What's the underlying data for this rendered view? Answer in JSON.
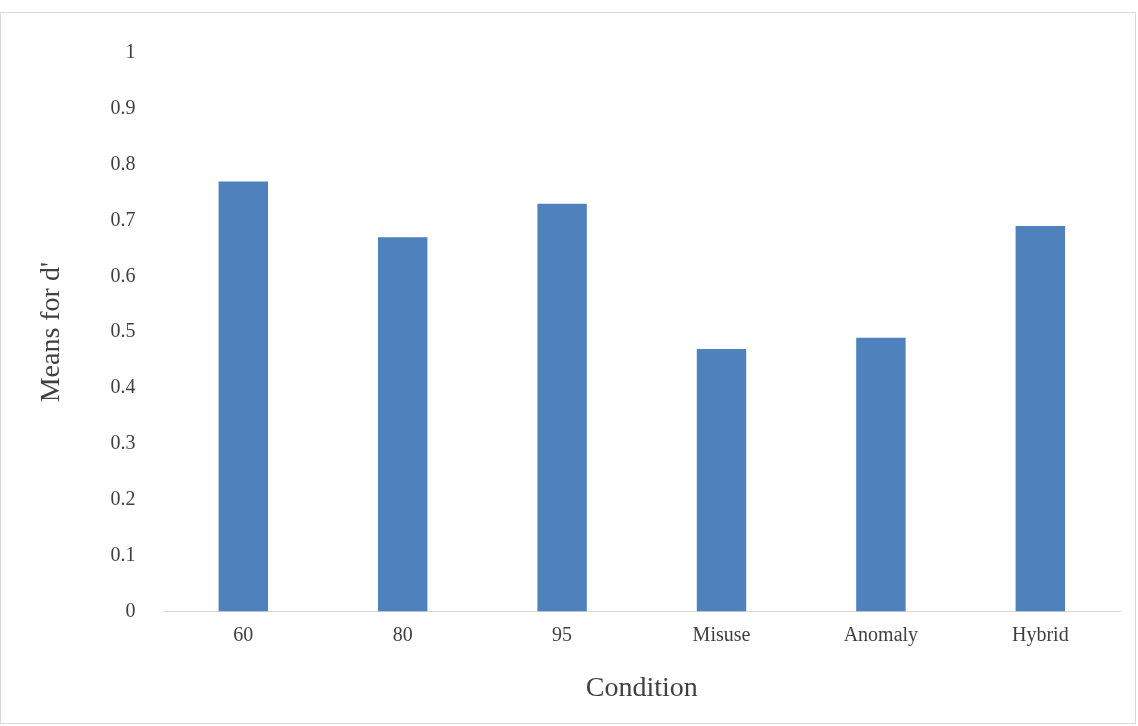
{
  "chart_data": {
    "type": "bar",
    "xlabel": "Condition",
    "ylabel": "Means for d'",
    "categories": [
      "60",
      "80",
      "95",
      "Misuse",
      "Anomaly",
      "Hybrid"
    ],
    "values": [
      0.77,
      0.67,
      0.73,
      0.47,
      0.49,
      0.69
    ],
    "color": "#4f81bd",
    "ylim": [
      0,
      1
    ],
    "yticks": [
      0,
      0.1,
      0.2,
      0.3,
      0.4,
      0.5,
      0.6,
      0.7,
      0.8,
      0.9,
      1
    ],
    "grid": false,
    "legend": false
  }
}
